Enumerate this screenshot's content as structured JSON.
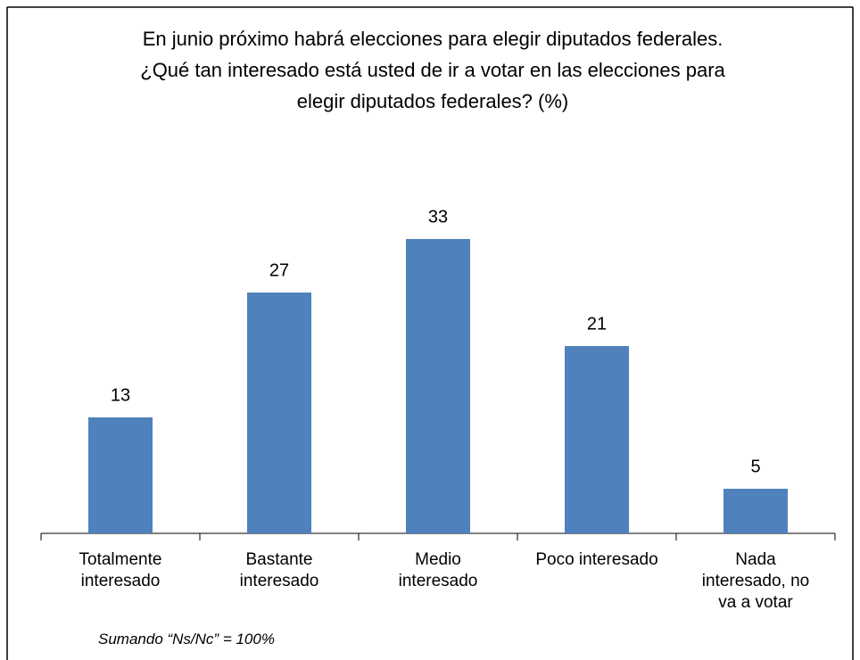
{
  "chart_data": {
    "type": "bar",
    "title": "En junio próximo habrá elecciones para elegir diputados federales.\n¿Qué tan interesado está usted de ir a votar en las elecciones para\nelegir diputados federales? (%)",
    "categories": [
      "Totalmente\ninteresado",
      "Bastante\ninteresado",
      "Medio\ninteresado",
      "Poco interesado",
      "Nada\ninteresado, no\nva a votar"
    ],
    "values": [
      13,
      27,
      33,
      21,
      5
    ],
    "color": "#4f81bd",
    "ylim": [
      0,
      35
    ],
    "note": "Sumando “Ns/Nc” = 100%"
  }
}
